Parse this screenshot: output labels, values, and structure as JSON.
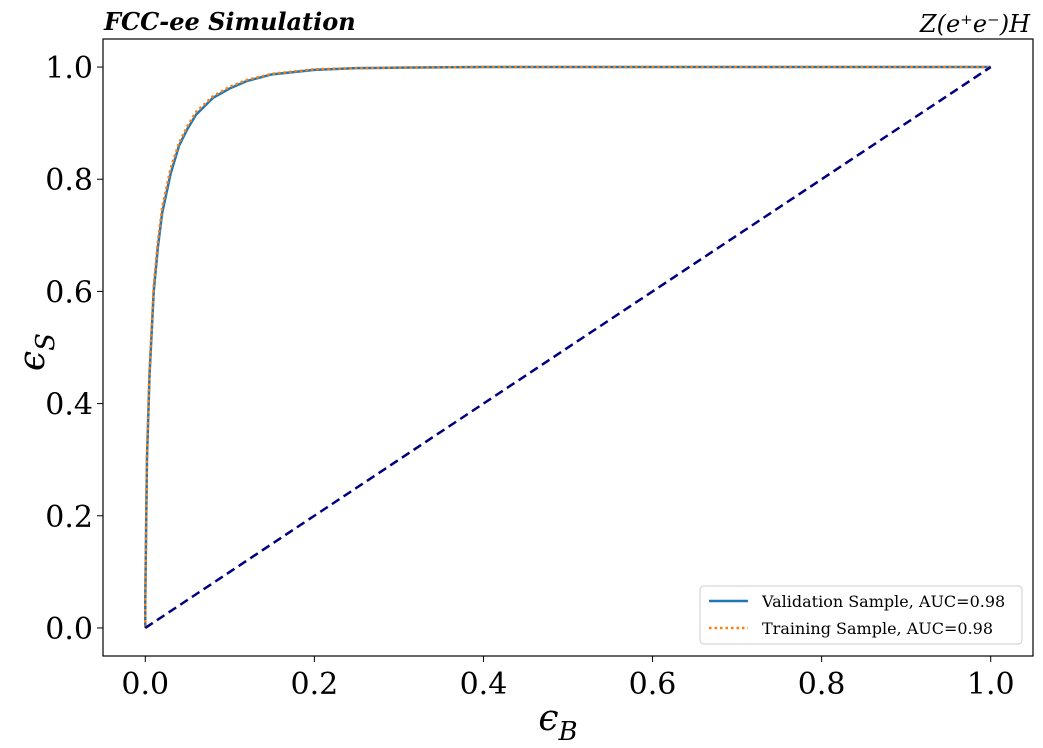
{
  "chart_data": {
    "type": "line",
    "title_left": "FCC-ee Simulation",
    "title_right": "Z(e⁺e⁻)H",
    "xlabel": "ϵ",
    "xlabel_sub": "B",
    "ylabel": "ϵ",
    "ylabel_sub": "S",
    "xlim": [
      -0.05,
      1.05
    ],
    "ylim": [
      -0.05,
      1.05
    ],
    "xticks": [
      0.0,
      0.2,
      0.4,
      0.6,
      0.8,
      1.0
    ],
    "xtick_labels": [
      "0.0",
      "0.2",
      "0.4",
      "0.6",
      "0.8",
      "1.0"
    ],
    "yticks": [
      0.0,
      0.2,
      0.4,
      0.6,
      0.8,
      1.0
    ],
    "ytick_labels": [
      "0.0",
      "0.2",
      "0.4",
      "0.6",
      "0.8",
      "1.0"
    ],
    "grid": false,
    "legend_position": "bottom-right",
    "series": [
      {
        "name": "Validation Sample, AUC=0.98",
        "color": "#1f77b4",
        "style": "solid",
        "x": [
          0,
          0.0,
          0.002,
          0.005,
          0.01,
          0.015,
          0.02,
          0.03,
          0.04,
          0.05,
          0.06,
          0.08,
          0.1,
          0.12,
          0.15,
          0.2,
          0.25,
          0.3,
          0.4,
          0.5,
          0.7,
          1.0
        ],
        "y": [
          0,
          0.05,
          0.3,
          0.45,
          0.6,
          0.68,
          0.74,
          0.81,
          0.86,
          0.89,
          0.915,
          0.945,
          0.962,
          0.975,
          0.987,
          0.995,
          0.998,
          0.999,
          1.0,
          1.0,
          1.0,
          1.0
        ]
      },
      {
        "name": "Training Sample, AUC=0.98",
        "color": "#ff7f0e",
        "style": "dotted",
        "x": [
          0,
          0.0,
          0.002,
          0.005,
          0.01,
          0.015,
          0.02,
          0.03,
          0.04,
          0.05,
          0.06,
          0.08,
          0.1,
          0.12,
          0.15,
          0.2,
          0.25,
          0.3,
          0.4,
          0.5,
          0.7,
          1.0
        ],
        "y": [
          0,
          0.05,
          0.31,
          0.46,
          0.61,
          0.69,
          0.75,
          0.82,
          0.865,
          0.895,
          0.92,
          0.948,
          0.965,
          0.977,
          0.988,
          0.996,
          0.998,
          0.999,
          1.0,
          1.0,
          1.0,
          1.0
        ]
      },
      {
        "color": "#00007f",
        "style": "dashed",
        "x": [
          0,
          1
        ],
        "y": [
          0,
          1
        ]
      }
    ]
  }
}
